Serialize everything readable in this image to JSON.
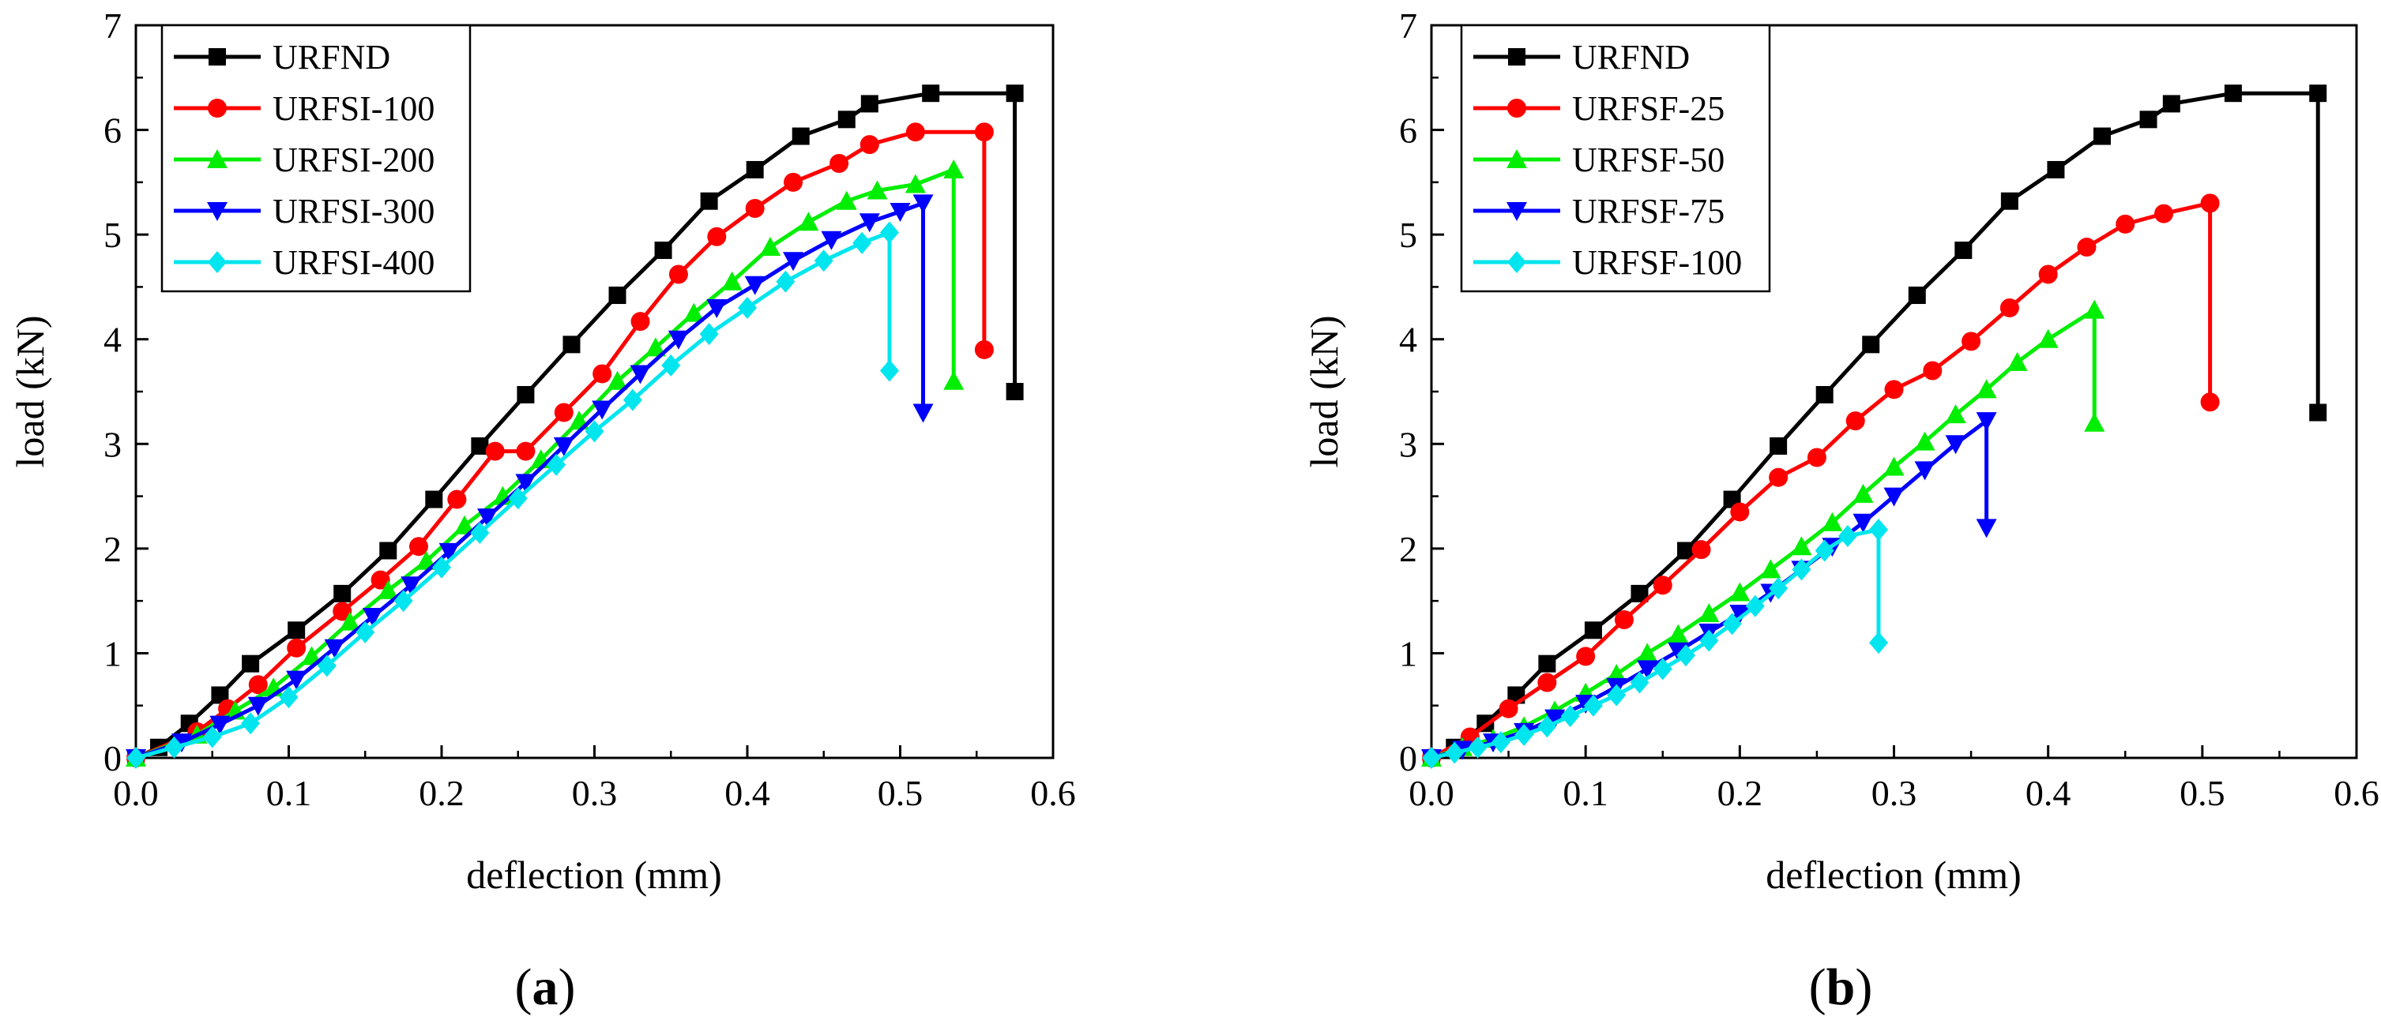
{
  "figure": {
    "panels": [
      {
        "id": "a",
        "label_open": "(",
        "label_letter": "a",
        "label_close": ")"
      },
      {
        "id": "b",
        "label_open": "(",
        "label_letter": "b",
        "label_close": ")"
      }
    ]
  },
  "chart_data": [
    {
      "type": "line",
      "panel": "a",
      "title": "",
      "xlabel": "deflection (mm)",
      "ylabel": "load (kN)",
      "xlim": [
        0.0,
        0.6
      ],
      "ylim": [
        0,
        7
      ],
      "xticks": [
        "0.0",
        "0.1",
        "0.2",
        "0.3",
        "0.4",
        "0.5",
        "0.6"
      ],
      "yticks": [
        "0",
        "1",
        "2",
        "3",
        "4",
        "5",
        "6",
        "7"
      ],
      "grid": false,
      "legend_position": "top-left",
      "series": [
        {
          "name": "URFND",
          "color": "#000000",
          "marker": "square",
          "x": [
            0,
            0.015,
            0.035,
            0.055,
            0.075,
            0.105,
            0.135,
            0.165,
            0.195,
            0.225,
            0.255,
            0.285,
            0.315,
            0.345,
            0.375,
            0.405,
            0.435,
            0.465,
            0.48,
            0.52,
            0.575,
            0.575
          ],
          "y": [
            0,
            0.1,
            0.33,
            0.6,
            0.9,
            1.22,
            1.57,
            1.98,
            2.47,
            2.98,
            3.47,
            3.95,
            4.42,
            4.85,
            5.32,
            5.62,
            5.94,
            6.1,
            6.25,
            6.35,
            6.35,
            3.5
          ]
        },
        {
          "name": "URFSI-100",
          "color": "#ff0000",
          "marker": "circle",
          "x": [
            0,
            0.04,
            0.06,
            0.08,
            0.105,
            0.135,
            0.16,
            0.185,
            0.21,
            0.235,
            0.255,
            0.28,
            0.305,
            0.33,
            0.355,
            0.38,
            0.405,
            0.43,
            0.46,
            0.48,
            0.51,
            0.555,
            0.555
          ],
          "y": [
            0,
            0.25,
            0.47,
            0.7,
            1.05,
            1.4,
            1.7,
            2.02,
            2.47,
            2.93,
            2.93,
            3.3,
            3.67,
            4.17,
            4.62,
            4.98,
            5.25,
            5.5,
            5.68,
            5.86,
            5.98,
            5.98,
            3.9
          ]
        },
        {
          "name": "URFSI-200",
          "color": "#00ee00",
          "marker": "triangle-up",
          "x": [
            0,
            0.04,
            0.065,
            0.09,
            0.115,
            0.14,
            0.165,
            0.19,
            0.215,
            0.24,
            0.265,
            0.29,
            0.315,
            0.34,
            0.365,
            0.39,
            0.415,
            0.44,
            0.465,
            0.485,
            0.51,
            0.535,
            0.535
          ],
          "y": [
            0,
            0.22,
            0.45,
            0.67,
            0.97,
            1.3,
            1.6,
            1.88,
            2.22,
            2.5,
            2.85,
            3.22,
            3.6,
            3.92,
            4.25,
            4.55,
            4.88,
            5.12,
            5.32,
            5.42,
            5.48,
            5.62,
            3.6
          ]
        },
        {
          "name": "URFSI-300",
          "color": "#0000ff",
          "marker": "triangle-down",
          "x": [
            0,
            0.03,
            0.055,
            0.08,
            0.105,
            0.13,
            0.155,
            0.18,
            0.205,
            0.23,
            0.255,
            0.28,
            0.305,
            0.33,
            0.355,
            0.38,
            0.405,
            0.43,
            0.455,
            0.48,
            0.5,
            0.515,
            0.515
          ],
          "y": [
            0,
            0.15,
            0.32,
            0.5,
            0.75,
            1.05,
            1.35,
            1.65,
            1.97,
            2.3,
            2.63,
            2.98,
            3.33,
            3.67,
            4.0,
            4.3,
            4.52,
            4.75,
            4.95,
            5.12,
            5.22,
            5.3,
            3.3
          ]
        },
        {
          "name": "URFSI-400",
          "color": "#00e5ee",
          "marker": "diamond",
          "x": [
            0,
            0.025,
            0.05,
            0.075,
            0.1,
            0.125,
            0.15,
            0.175,
            0.2,
            0.225,
            0.25,
            0.275,
            0.3,
            0.325,
            0.35,
            0.375,
            0.4,
            0.425,
            0.45,
            0.475,
            0.493,
            0.493
          ],
          "y": [
            0,
            0.1,
            0.2,
            0.33,
            0.58,
            0.88,
            1.2,
            1.5,
            1.82,
            2.15,
            2.48,
            2.8,
            3.12,
            3.42,
            3.75,
            4.05,
            4.3,
            4.55,
            4.75,
            4.92,
            5.02,
            3.7
          ]
        }
      ]
    },
    {
      "type": "line",
      "panel": "b",
      "title": "",
      "xlabel": "deflection (mm)",
      "ylabel": "load (kN)",
      "xlim": [
        0.0,
        0.6
      ],
      "ylim": [
        0,
        7
      ],
      "xticks": [
        "0.0",
        "0.1",
        "0.2",
        "0.3",
        "0.4",
        "0.5",
        "0.6"
      ],
      "yticks": [
        "0",
        "1",
        "2",
        "3",
        "4",
        "5",
        "6",
        "7"
      ],
      "grid": false,
      "legend_position": "top-left",
      "series": [
        {
          "name": "URFND",
          "color": "#000000",
          "marker": "square",
          "x": [
            0,
            0.015,
            0.035,
            0.055,
            0.075,
            0.105,
            0.135,
            0.165,
            0.195,
            0.225,
            0.255,
            0.285,
            0.315,
            0.345,
            0.375,
            0.405,
            0.435,
            0.465,
            0.48,
            0.52,
            0.575,
            0.575
          ],
          "y": [
            0,
            0.1,
            0.33,
            0.6,
            0.9,
            1.22,
            1.57,
            1.98,
            2.47,
            2.98,
            3.47,
            3.95,
            4.42,
            4.85,
            5.32,
            5.62,
            5.94,
            6.1,
            6.25,
            6.35,
            6.35,
            3.3
          ]
        },
        {
          "name": "URFSF-25",
          "color": "#ff0000",
          "marker": "circle",
          "x": [
            0,
            0.025,
            0.05,
            0.075,
            0.1,
            0.125,
            0.15,
            0.175,
            0.2,
            0.225,
            0.25,
            0.275,
            0.3,
            0.325,
            0.35,
            0.375,
            0.4,
            0.425,
            0.45,
            0.475,
            0.505,
            0.505
          ],
          "y": [
            0,
            0.2,
            0.47,
            0.72,
            0.97,
            1.32,
            1.65,
            1.99,
            2.35,
            2.68,
            2.87,
            3.22,
            3.52,
            3.7,
            3.98,
            4.3,
            4.62,
            4.88,
            5.1,
            5.2,
            5.3,
            3.4
          ]
        },
        {
          "name": "URFSF-50",
          "color": "#00ee00",
          "marker": "triangle-up",
          "x": [
            0,
            0.02,
            0.04,
            0.06,
            0.08,
            0.1,
            0.12,
            0.14,
            0.16,
            0.18,
            0.2,
            0.22,
            0.24,
            0.26,
            0.28,
            0.3,
            0.32,
            0.34,
            0.36,
            0.38,
            0.4,
            0.43,
            0.43
          ],
          "y": [
            0,
            0.1,
            0.18,
            0.3,
            0.45,
            0.62,
            0.8,
            1.0,
            1.18,
            1.38,
            1.58,
            1.8,
            2.02,
            2.25,
            2.52,
            2.78,
            3.02,
            3.28,
            3.52,
            3.78,
            4.0,
            4.28,
            3.2
          ]
        },
        {
          "name": "URFSF-75",
          "color": "#0000ff",
          "marker": "triangle-down",
          "x": [
            0,
            0.02,
            0.04,
            0.06,
            0.08,
            0.1,
            0.12,
            0.14,
            0.16,
            0.18,
            0.2,
            0.22,
            0.24,
            0.26,
            0.28,
            0.3,
            0.32,
            0.34,
            0.36,
            0.36
          ],
          "y": [
            0,
            0.08,
            0.15,
            0.25,
            0.38,
            0.52,
            0.68,
            0.85,
            1.02,
            1.2,
            1.38,
            1.58,
            1.8,
            2.02,
            2.25,
            2.5,
            2.75,
            3.0,
            3.22,
            2.2
          ]
        },
        {
          "name": "URFSF-100",
          "color": "#00e5ee",
          "marker": "diamond",
          "x": [
            0,
            0.015,
            0.03,
            0.045,
            0.06,
            0.075,
            0.09,
            0.105,
            0.12,
            0.135,
            0.15,
            0.165,
            0.18,
            0.195,
            0.21,
            0.225,
            0.24,
            0.255,
            0.27,
            0.29,
            0.29
          ],
          "y": [
            0,
            0.05,
            0.1,
            0.15,
            0.22,
            0.3,
            0.4,
            0.5,
            0.6,
            0.72,
            0.85,
            0.98,
            1.12,
            1.28,
            1.45,
            1.62,
            1.8,
            1.98,
            2.12,
            2.18,
            1.1
          ]
        }
      ]
    }
  ]
}
